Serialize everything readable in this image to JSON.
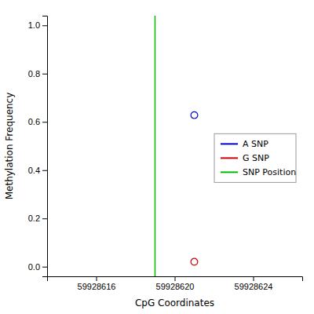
{
  "chart_data": {
    "type": "scatter",
    "xlabel": "CpG Coordinates",
    "ylabel": "Methylation Frequency",
    "xlim": [
      59928613.5,
      59928626.5
    ],
    "ylim": [
      -0.04,
      1.04
    ],
    "xticks": [
      59928616,
      59928620,
      59928624
    ],
    "yticks": [
      {
        "value": 0.0,
        "label": "0.0"
      },
      0.2,
      0.4,
      0.6,
      0.8,
      {
        "value": 1.0,
        "label": "1.0"
      }
    ],
    "grid": false,
    "legend": "right",
    "series": [
      {
        "name": "A SNP",
        "type": "scatter",
        "marker": "circle",
        "color": "#0000cc",
        "x": [
          59928621
        ],
        "values": [
          0.628
        ]
      },
      {
        "name": "G SNP",
        "type": "scatter",
        "marker": "circle",
        "color": "#cc0000",
        "x": [
          59928621
        ],
        "values": [
          0.02
        ]
      },
      {
        "name": "SNP Position",
        "type": "vline",
        "color": "#00bb00",
        "x": [
          59928619
        ]
      }
    ]
  }
}
